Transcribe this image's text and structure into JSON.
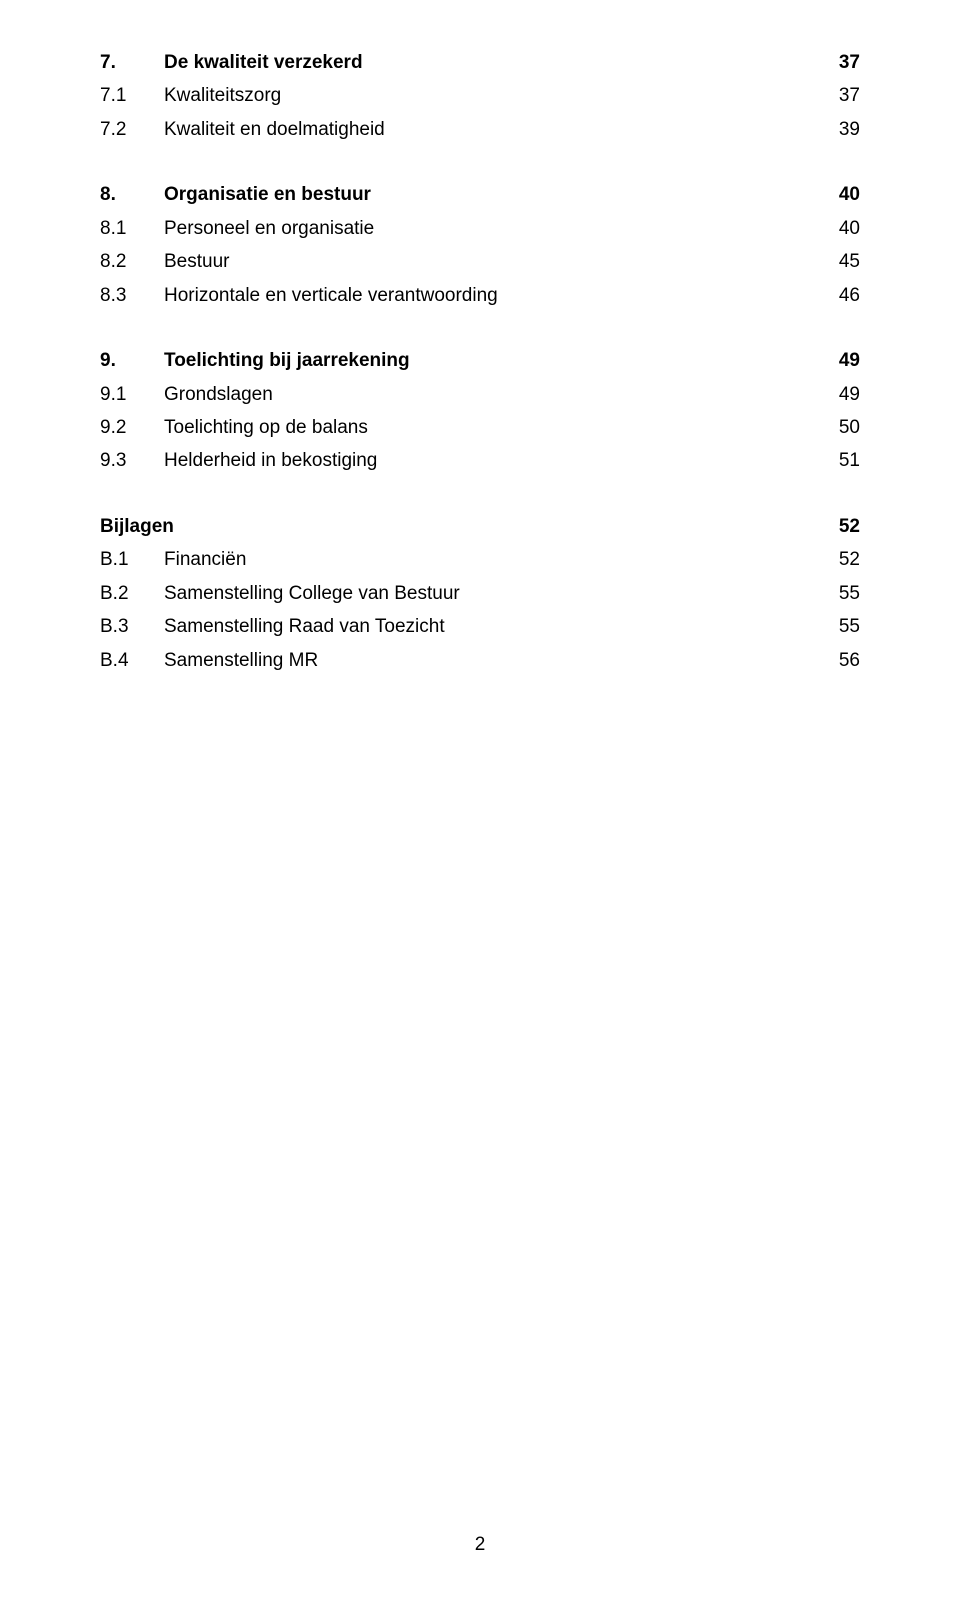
{
  "sections": [
    {
      "header": {
        "num": "7.",
        "title": "De kwaliteit verzekerd",
        "page": "37"
      },
      "items": [
        {
          "num": "7.1",
          "title": "Kwaliteitszorg",
          "page": "37"
        },
        {
          "num": "7.2",
          "title": "Kwaliteit en doelmatigheid",
          "page": "39"
        }
      ]
    },
    {
      "header": {
        "num": "8.",
        "title": "Organisatie en bestuur",
        "page": "40"
      },
      "items": [
        {
          "num": "8.1",
          "title": "Personeel en organisatie",
          "page": "40"
        },
        {
          "num": "8.2",
          "title": "Bestuur",
          "page": "45"
        },
        {
          "num": "8.3",
          "title": "Horizontale en verticale verantwoording",
          "page": "46"
        }
      ]
    },
    {
      "header": {
        "num": "9.",
        "title": "Toelichting bij jaarrekening",
        "page": "49"
      },
      "items": [
        {
          "num": "9.1",
          "title": "Grondslagen",
          "page": "49"
        },
        {
          "num": "9.2",
          "title": "Toelichting op de balans",
          "page": "50"
        },
        {
          "num": "9.3",
          "title": "Helderheid in bekostiging",
          "page": "51"
        }
      ]
    },
    {
      "header": {
        "num": "Bijlagen",
        "title": "",
        "page": "52"
      },
      "items": [
        {
          "num": "B.1",
          "title": "Financiën",
          "page": "52"
        },
        {
          "num": "B.2",
          "title": "Samenstelling College van Bestuur",
          "page": "55"
        },
        {
          "num": "B.3",
          "title": "Samenstelling Raad van Toezicht",
          "page": "55"
        },
        {
          "num": "B.4",
          "title": "Samenstelling MR",
          "page": "56"
        }
      ]
    }
  ],
  "page_number": "2"
}
